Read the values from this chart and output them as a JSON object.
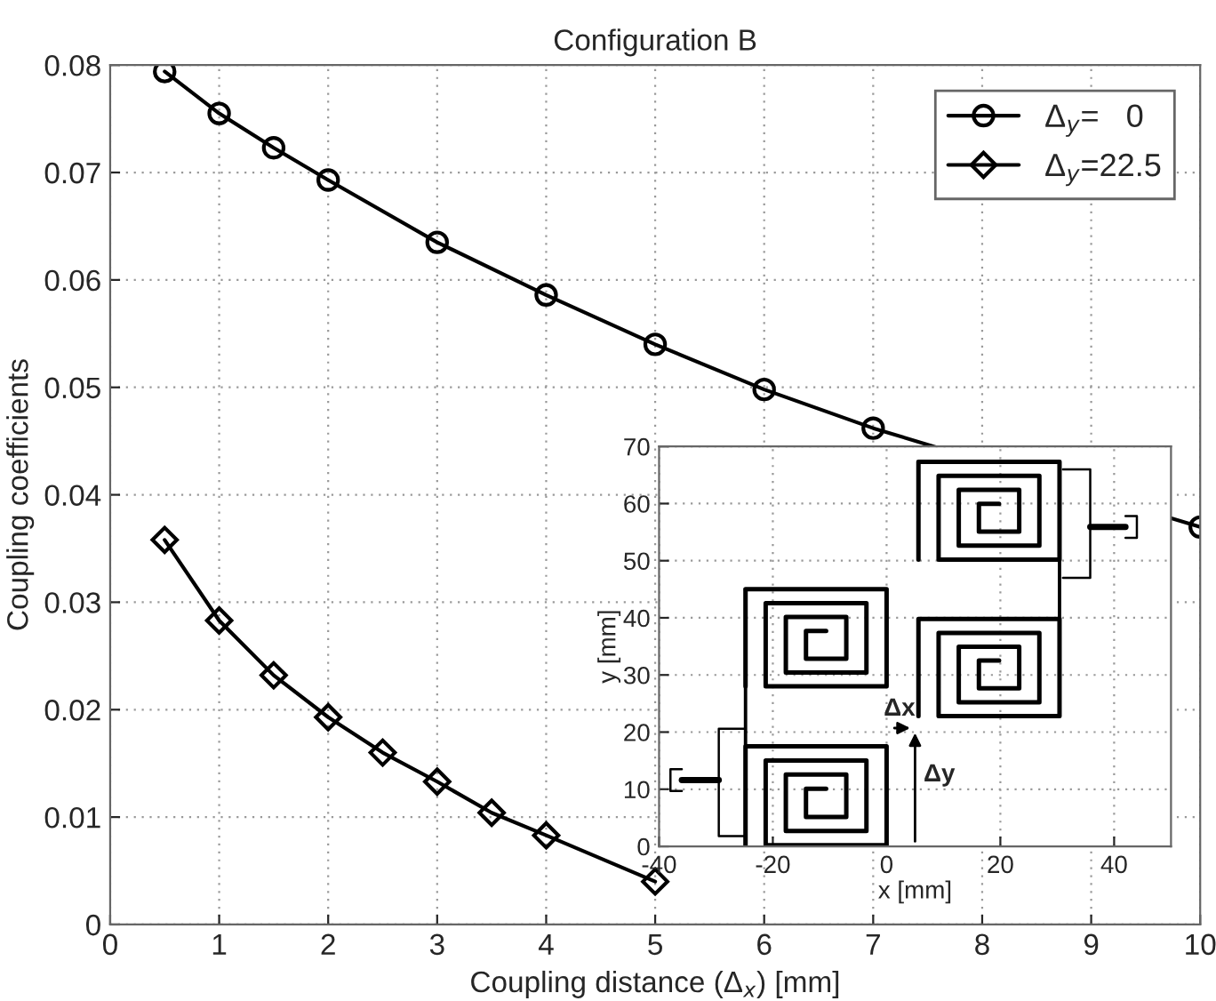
{
  "chart_data": [
    {
      "type": "line",
      "title": "Configuration B",
      "xlabel": "Coupling distance (Δ$_{x}$) [mm]",
      "ylabel": "Coupling coefficients",
      "xlim": [
        0,
        10
      ],
      "ylim": [
        0,
        0.08
      ],
      "xticks": [
        0,
        1,
        2,
        3,
        4,
        5,
        6,
        7,
        8,
        9,
        10
      ],
      "yticks": [
        0,
        0.01,
        0.02,
        0.03,
        0.04,
        0.05,
        0.06,
        0.07,
        0.08
      ],
      "grid": true,
      "legend": "top right",
      "series": [
        {
          "name": "Δ$_{y}$=   0",
          "color": "#000000",
          "marker": "circle",
          "x": [
            0.5,
            1,
            1.5,
            2,
            3,
            4,
            5,
            6,
            7,
            10
          ],
          "values": [
            0.0794,
            0.0755,
            0.0723,
            0.0693,
            0.0635,
            0.0586,
            0.054,
            0.0498,
            0.0462,
            0.037
          ]
        },
        {
          "name": "Δ$_{y}$=22.5",
          "color": "#000000",
          "marker": "diamond",
          "x": [
            0.5,
            1,
            1.5,
            2,
            2.5,
            3,
            3.5,
            4,
            5
          ],
          "values": [
            0.0358,
            0.0283,
            0.0232,
            0.0193,
            0.016,
            0.0133,
            0.0104,
            0.0083,
            0.004
          ]
        }
      ]
    },
    {
      "type": "line",
      "xlabel": "x [mm]",
      "ylabel": "y [mm]",
      "xlim": [
        -40,
        50
      ],
      "ylim": [
        0,
        70
      ],
      "xticks": [
        -40,
        -20,
        0,
        20,
        40
      ],
      "yticks": [
        0,
        10,
        20,
        30,
        40,
        50,
        60,
        70
      ],
      "grid": true,
      "annotations": [
        "Δx",
        "Δy"
      ]
    }
  ]
}
